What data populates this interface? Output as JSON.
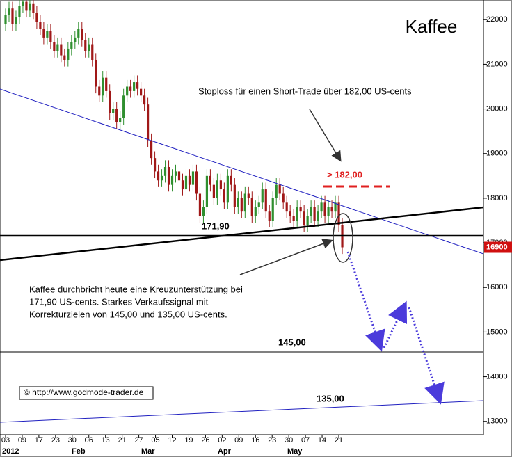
{
  "chart_data": {
    "type": "candlestick",
    "title": "Kaffee",
    "ylim": [
      12700,
      22440
    ],
    "yticks": [
      13000,
      14000,
      15000,
      16000,
      17000,
      18000,
      19000,
      20000,
      21000,
      22000
    ],
    "current_price": 16900,
    "xticks": [
      "03",
      "09",
      "17",
      "23",
      "30",
      "06",
      "13",
      "21",
      "27",
      "05",
      "12",
      "19",
      "26",
      "02",
      "09",
      "16",
      "23",
      "30",
      "07",
      "14",
      "21"
    ],
    "months": [
      "2012",
      "Feb",
      "Mar",
      "Apr",
      "May"
    ],
    "up_color": "#2f8f2f",
    "down_color": "#a01818",
    "open": [
      21900,
      22100,
      22250,
      21900,
      22050,
      22300,
      22400,
      22200,
      22350,
      22150,
      21950,
      21800,
      21600,
      21750,
      21500,
      21300,
      21450,
      21200,
      21100,
      21350,
      21500,
      21600,
      21800,
      21550,
      21300,
      21450,
      21100,
      20500,
      20300,
      20700,
      20400,
      19900,
      20000,
      19700,
      19800,
      20300,
      20500,
      20400,
      20600,
      20450,
      20300,
      20100,
      19300,
      18900,
      18600,
      18400,
      18500,
      18700,
      18300,
      18500,
      18600,
      18400,
      18200,
      18500,
      18300,
      18600,
      18100,
      17600,
      17800,
      18500,
      18300,
      18000,
      18400,
      18200,
      17900,
      18500,
      18300,
      17800,
      18000,
      17700,
      18100,
      18000,
      17600,
      17800,
      17900,
      18200,
      17700,
      17500,
      18000,
      18300,
      18100,
      17900,
      17700,
      17600,
      17500,
      17800,
      17700,
      17400,
      17600,
      17800,
      17500,
      17700,
      17900,
      17600,
      17800,
      17700,
      17900,
      17400
    ],
    "high": [
      22250,
      22400,
      22400,
      22200,
      22450,
      22550,
      22550,
      22500,
      22500,
      22300,
      22100,
      21950,
      21900,
      21900,
      21650,
      21600,
      21600,
      21350,
      21500,
      21650,
      21750,
      21950,
      21950,
      21700,
      21600,
      21600,
      21250,
      20650,
      20850,
      20850,
      20550,
      20150,
      20150,
      19950,
      20450,
      20650,
      20650,
      20750,
      20750,
      20600,
      20450,
      20250,
      19450,
      19050,
      18750,
      18650,
      18850,
      18850,
      18650,
      18750,
      18750,
      18550,
      18650,
      18650,
      18750,
      18750,
      18250,
      17950,
      18650,
      18650,
      18450,
      18550,
      18550,
      18350,
      18650,
      18650,
      18450,
      18150,
      18150,
      18250,
      18250,
      18150,
      17950,
      18050,
      18350,
      18350,
      17850,
      18150,
      18450,
      18450,
      18250,
      18050,
      17850,
      17750,
      17950,
      17950,
      17850,
      17750,
      17950,
      17950,
      17850,
      18050,
      18050,
      17950,
      17950,
      18050,
      18050,
      17550
    ],
    "low": [
      21750,
      21950,
      21750,
      21750,
      21900,
      22150,
      22050,
      22050,
      22000,
      21800,
      21650,
      21450,
      21450,
      21350,
      21150,
      21150,
      21050,
      20950,
      20950,
      21200,
      21350,
      21450,
      21400,
      21150,
      21150,
      20950,
      20350,
      20150,
      20150,
      20250,
      19750,
      19750,
      19550,
      19550,
      19650,
      20150,
      20250,
      20250,
      20300,
      20150,
      19950,
      19150,
      18750,
      18450,
      18250,
      18250,
      18350,
      18150,
      18150,
      18350,
      18250,
      18050,
      18050,
      18150,
      18150,
      17950,
      17450,
      17450,
      17650,
      18150,
      17850,
      17850,
      18050,
      17750,
      17750,
      18150,
      17650,
      17650,
      17550,
      17550,
      17850,
      17450,
      17450,
      17650,
      17750,
      17550,
      17350,
      17350,
      17850,
      17950,
      17750,
      17550,
      17450,
      17350,
      17350,
      17550,
      17250,
      17250,
      17450,
      17350,
      17350,
      17550,
      17450,
      17450,
      17550,
      17550,
      17250,
      16750
    ],
    "close": [
      22100,
      22250,
      21900,
      22050,
      22300,
      22400,
      22200,
      22350,
      22150,
      21950,
      21800,
      21600,
      21750,
      21500,
      21300,
      21450,
      21200,
      21100,
      21350,
      21500,
      21600,
      21800,
      21550,
      21300,
      21450,
      21100,
      20500,
      20300,
      20700,
      20400,
      19900,
      20000,
      19700,
      19800,
      20300,
      20500,
      20400,
      20600,
      20450,
      20300,
      20100,
      19300,
      18900,
      18600,
      18400,
      18500,
      18700,
      18300,
      18500,
      18600,
      18400,
      18200,
      18500,
      18300,
      18600,
      18100,
      17600,
      17800,
      18500,
      18300,
      18000,
      18400,
      18200,
      17900,
      18500,
      18300,
      17800,
      18000,
      17700,
      18100,
      18000,
      17600,
      17800,
      17900,
      18200,
      17700,
      17500,
      18000,
      18300,
      18100,
      17900,
      17700,
      17600,
      17500,
      17800,
      17700,
      17400,
      17600,
      17800,
      17500,
      17700,
      17900,
      17600,
      17800,
      17700,
      17900,
      17400,
      16900
    ],
    "annotations": {
      "stoploss": "Stoploss für einen Short-Trade über 182,00 US-cents",
      "stop_level": "> 182,00",
      "support": "171,90",
      "comment": [
        "Kaffee durchbricht heute eine Kreuzunterstützung bei",
        "171,90 US-cents.  Starkes Verkaufssignal mit",
        "Korrekturzielen von 145,00 und 135,00 US-cents."
      ],
      "target1": "145,00",
      "target2": "135,00",
      "source": "© http://www.godmode-trader.de"
    }
  }
}
